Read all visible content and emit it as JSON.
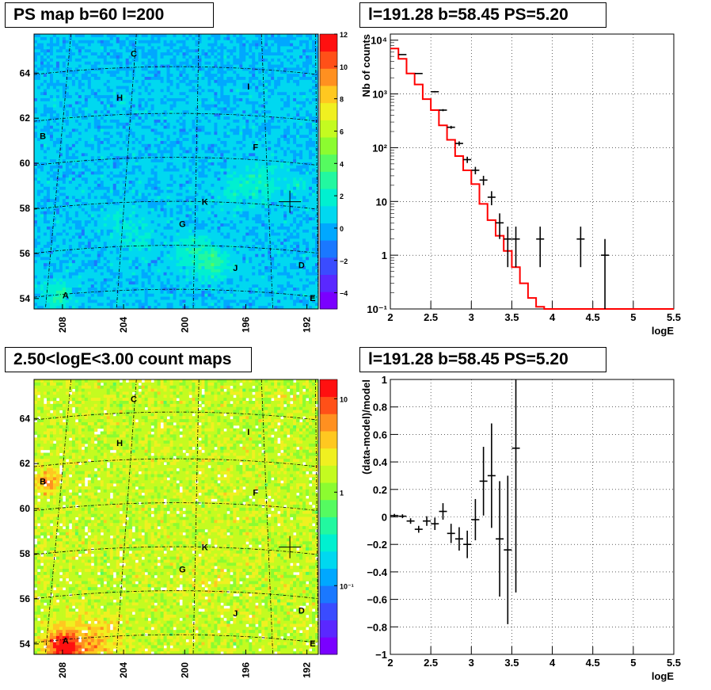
{
  "chart_data": [
    {
      "type": "heatmap",
      "title": "PS map b=60 l=200",
      "x_ticks": [
        "208",
        "204",
        "200",
        "196",
        "192"
      ],
      "y_ticks": [
        "54",
        "56",
        "58",
        "60",
        "62",
        "64"
      ],
      "colorbar_ticks": [
        "12",
        "10",
        "8",
        "6",
        "4",
        "2",
        "0",
        "−2",
        "−4"
      ],
      "colorbar_range": [
        -5,
        12
      ],
      "source_labels": [
        "C",
        "I",
        "H",
        "B",
        "F",
        "K",
        "G",
        "D",
        "J",
        "A",
        "E"
      ],
      "marker": "l=191.28 b=58.45"
    },
    {
      "type": "line",
      "title": "l=191.28 b=58.45 PS=5.20",
      "xlabel": "logE",
      "ylabel": "Nb of counts",
      "yscale": "log",
      "xlim": [
        2,
        5.5
      ],
      "ylim": [
        0.1,
        13000
      ],
      "x_ticks": [
        "2",
        "2.5",
        "3",
        "3.5",
        "4",
        "4.5",
        "5",
        "5.5"
      ],
      "y_ticks": [
        "10⁴",
        "10³",
        "10²",
        "10",
        "1",
        "10⁻¹"
      ],
      "grid": true,
      "series": [
        {
          "kind": "histogram",
          "color": "#ff0000",
          "bin_edges": [
            2.0,
            2.1,
            2.2,
            2.3,
            2.4,
            2.5,
            2.6,
            2.7,
            2.8,
            2.9,
            3.0,
            3.1,
            3.2,
            3.3,
            3.4,
            3.5,
            3.6,
            3.7,
            3.8,
            3.9,
            4.0,
            5.5
          ],
          "values": [
            7000,
            4500,
            2400,
            1500,
            800,
            500,
            260,
            140,
            70,
            38,
            21,
            9,
            4.5,
            2.3,
            1.2,
            0.6,
            0.3,
            0.16,
            0.11,
            0.1,
            0.1
          ]
        },
        {
          "kind": "points",
          "color": "#000000",
          "x": [
            2.15,
            2.35,
            2.55,
            2.65,
            2.75,
            2.85,
            2.95,
            3.05,
            3.15,
            3.25,
            3.35,
            3.45,
            3.55,
            3.85,
            4.35,
            4.65
          ],
          "y": [
            5400,
            2400,
            1100,
            500,
            240,
            120,
            60,
            38,
            25,
            12,
            4,
            2,
            2,
            2,
            2,
            1
          ],
          "yerr": [
            73,
            49,
            33,
            22,
            15,
            11,
            8,
            6,
            5,
            3.5,
            2,
            1.4,
            1.4,
            1.4,
            1.4,
            1
          ]
        }
      ]
    },
    {
      "type": "heatmap",
      "title": "2.50<logE<3.00 count maps",
      "x_ticks": [
        "208",
        "204",
        "200",
        "196",
        "192"
      ],
      "y_ticks": [
        "54",
        "56",
        "58",
        "60",
        "62",
        "64"
      ],
      "colorbar_ticks": [
        "10",
        "1",
        "10⁻¹"
      ],
      "colorbar_scale": "log",
      "source_labels": [
        "C",
        "I",
        "H",
        "B",
        "F",
        "K",
        "G",
        "D",
        "J",
        "A",
        "E"
      ],
      "marker": "l=191.28 b=58.45"
    },
    {
      "type": "scatter",
      "title": "l=191.28 b=58.45 PS=5.20",
      "xlabel": "logE",
      "ylabel": "(data-model)/model",
      "xlim": [
        2,
        5.5
      ],
      "ylim": [
        -1,
        1
      ],
      "x_ticks": [
        "2",
        "2.5",
        "3",
        "3.5",
        "4",
        "4.5",
        "5",
        "5.5"
      ],
      "y_ticks": [
        "1",
        "0.8",
        "0.6",
        "0.4",
        "0.2",
        "0",
        "−0.2",
        "−0.4",
        "−0.6",
        "−0.8",
        "−1"
      ],
      "grid": true,
      "x": [
        2.05,
        2.15,
        2.25,
        2.35,
        2.45,
        2.55,
        2.65,
        2.75,
        2.85,
        2.95,
        3.05,
        3.15,
        3.25,
        3.35,
        3.45,
        3.55
      ],
      "y": [
        0.01,
        0.005,
        -0.03,
        -0.09,
        -0.03,
        -0.05,
        0.04,
        -0.12,
        -0.16,
        -0.2,
        -0.02,
        0.26,
        0.3,
        -0.16,
        -0.24,
        0.5
      ],
      "yerr": [
        0.012,
        0.014,
        0.02,
        0.025,
        0.035,
        0.045,
        0.06,
        0.07,
        0.085,
        0.1,
        0.15,
        0.25,
        0.38,
        0.42,
        0.54,
        1.05
      ]
    }
  ]
}
